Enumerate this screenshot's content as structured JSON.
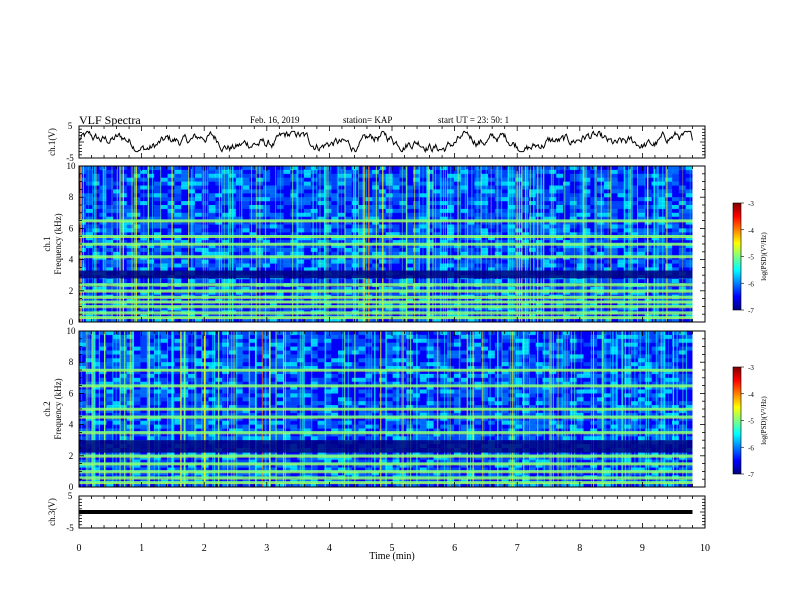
{
  "header": {
    "title": "VLF Spectra",
    "date": "Feb. 16, 2019",
    "station": "station= KAP",
    "start": "start  UT =   23: 50: 1"
  },
  "chart_data": [
    {
      "type": "line",
      "name": "ch1-voltage",
      "ylabel": "ch.1(V)",
      "xlim": [
        0,
        10
      ],
      "ylim": [
        -5,
        5
      ],
      "y_tick_labels": [
        "5",
        "-5"
      ],
      "description_points": "voltage trace fluctuating between about -2.5 and 3 V over 0–9.8 min"
    },
    {
      "type": "heatmap",
      "name": "ch1-spectrogram",
      "ylabel": "ch.1\nFrequency (kHz)",
      "ylabel_lines": [
        "ch.1",
        "Frequency (kHz)"
      ],
      "xlim": [
        0,
        10
      ],
      "ylim": [
        0,
        10
      ],
      "y_tick_labels": [
        "0",
        "2",
        "4",
        "6",
        "8",
        "10"
      ],
      "colorbar": {
        "label": "log(PSD)(V²/Hz)",
        "ticks": [
          "-3",
          "-4",
          "-5",
          "-6",
          "-7"
        ],
        "range": [
          -7,
          -3
        ]
      },
      "bands_khz": [
        0.3,
        0.6,
        1.0,
        1.3,
        1.6,
        2.0,
        2.4,
        4.2,
        5.0,
        5.5,
        6.5
      ],
      "dark_band_khz": [
        2.8,
        3.3
      ]
    },
    {
      "type": "heatmap",
      "name": "ch2-spectrogram",
      "ylabel_lines": [
        "ch.2",
        "Frequency (kHz)"
      ],
      "xlim": [
        0,
        10
      ],
      "ylim": [
        0,
        10
      ],
      "y_tick_labels": [
        "0",
        "2",
        "4",
        "6",
        "8",
        "10"
      ],
      "colorbar": {
        "label": "log(PSD)(V²/Hz)",
        "ticks": [
          "-3",
          "-4",
          "-5",
          "-6",
          "-7"
        ],
        "range": [
          -7,
          -3
        ]
      },
      "bands_khz": [
        0.3,
        0.6,
        1.0,
        1.5,
        2.0,
        3.5,
        4.5,
        5.0,
        6.5,
        7.5
      ],
      "dark_band_khz": [
        2.2,
        3.0
      ]
    },
    {
      "type": "line",
      "name": "ch3-voltage",
      "ylabel": "ch.3(V)",
      "xlim": [
        0,
        10
      ],
      "ylim": [
        -5,
        5
      ],
      "y_tick_labels": [
        "5",
        "-5"
      ],
      "constant_value": 0,
      "x_end": 9.8
    }
  ],
  "xaxis": {
    "label": "Time (min)",
    "tick_labels": [
      "0",
      "1",
      "2",
      "3",
      "4",
      "5",
      "6",
      "7",
      "8",
      "9",
      "10"
    ]
  },
  "colors": {
    "trace": "#000000",
    "cmap": [
      "#00007f",
      "#0000ff",
      "#0080ff",
      "#00ffff",
      "#80ff80",
      "#ffff00",
      "#ff8000",
      "#ff0000",
      "#7f0000"
    ]
  }
}
